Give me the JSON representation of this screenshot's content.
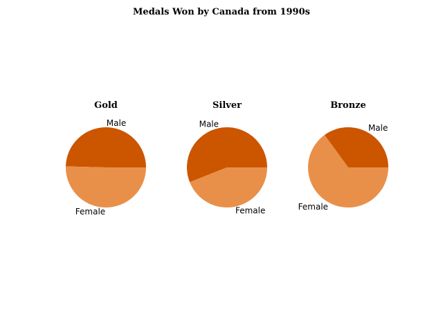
{
  "chart_data": {
    "type": "pie",
    "title": "Medals Won by Canada from 1990s",
    "colors": {
      "Male": "#cc5500",
      "Female": "#e8904a"
    },
    "charts": [
      {
        "title": "Gold",
        "categories": [
          "Male",
          "Female"
        ],
        "values": [
          49.6,
          50.4
        ]
      },
      {
        "title": "Silver",
        "categories": [
          "Male",
          "Female"
        ],
        "values": [
          56,
          44
        ]
      },
      {
        "title": "Bronze",
        "categories": [
          "Male",
          "Female"
        ],
        "values": [
          35,
          65
        ]
      }
    ]
  }
}
